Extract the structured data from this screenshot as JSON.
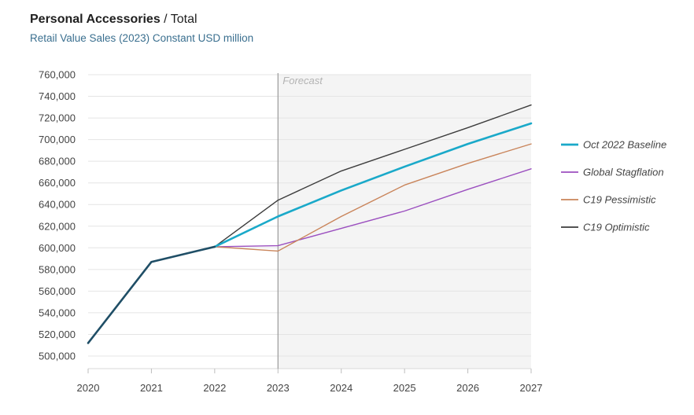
{
  "header": {
    "title_main": "Personal Accessories",
    "title_sep": " / ",
    "title_sub": "Total",
    "subtitle": "Retail Value Sales (2023) Constant USD million"
  },
  "chart_data": {
    "type": "line",
    "title": "Personal Accessories / Total",
    "subtitle": "Retail Value Sales (2023) Constant USD million",
    "xlabel": "",
    "ylabel": "",
    "x": [
      "2020",
      "2021",
      "2022",
      "2023",
      "2024",
      "2025",
      "2026",
      "2027"
    ],
    "ylim": [
      500000,
      760000
    ],
    "yticks": [
      500000,
      520000,
      540000,
      560000,
      580000,
      600000,
      620000,
      640000,
      660000,
      680000,
      700000,
      720000,
      740000,
      760000
    ],
    "ytick_labels": [
      "500,000",
      "520,000",
      "540,000",
      "560,000",
      "580,000",
      "600,000",
      "620,000",
      "640,000",
      "660,000",
      "680,000",
      "700,000",
      "720,000",
      "740,000",
      "760,000"
    ],
    "grid": true,
    "forecast": {
      "label": "Forecast",
      "start": "2023",
      "end": "2027"
    },
    "legend_position": "right",
    "history": {
      "color": "#1f4e66",
      "values": [
        512000,
        587000,
        601000
      ]
    },
    "series": [
      {
        "name": "Oct 2022 Baseline",
        "color": "#1aa9c9",
        "values": [
          null,
          null,
          601000,
          629000,
          653000,
          675000,
          696000,
          715000
        ]
      },
      {
        "name": "Global Stagflation",
        "color": "#9b4fbf",
        "values": [
          null,
          null,
          601000,
          602000,
          618000,
          634000,
          654000,
          673000
        ]
      },
      {
        "name": "C19 Pessimistic",
        "color": "#c9845a",
        "values": [
          null,
          null,
          601000,
          597000,
          629000,
          658000,
          678000,
          696000
        ]
      },
      {
        "name": "C19 Optimistic",
        "color": "#3c3c3c",
        "values": [
          null,
          null,
          601000,
          644000,
          671000,
          691000,
          711000,
          732000
        ]
      }
    ]
  }
}
